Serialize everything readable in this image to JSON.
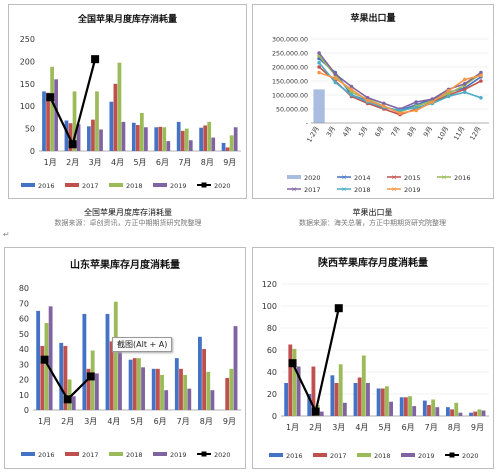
{
  "top_captions": [
    {
      "title": "全国苹果月度库存消耗量",
      "source": "数据来源：卓创资讯，方正中期期货研究院整理"
    },
    {
      "title": "苹果出口量",
      "source": "数据来源：海关总署，方正中期期货研究院整理"
    }
  ],
  "return_mark": "↵",
  "tooltip": "截图(Alt + A)",
  "chart_data": [
    {
      "type": "bar",
      "title": "全国苹果月度库存消耗量",
      "categories": [
        "1月",
        "2月",
        "3月",
        "4月",
        "5月",
        "6月",
        "7月",
        "8月",
        "9月"
      ],
      "ylim": [
        0,
        250
      ],
      "yticks": [
        "0",
        "50",
        "100",
        "150",
        "200",
        "250"
      ],
      "series": [
        {
          "name": "2016",
          "color": "#4472c4",
          "values": [
            133,
            68,
            55,
            110,
            63,
            53,
            65,
            52,
            18
          ]
        },
        {
          "name": "2017",
          "color": "#c0504d",
          "values": [
            130,
            62,
            70,
            150,
            58,
            54,
            45,
            57,
            8
          ]
        },
        {
          "name": "2018",
          "color": "#9bbb59",
          "values": [
            188,
            133,
            133,
            197,
            85,
            53,
            50,
            65,
            35
          ]
        },
        {
          "name": "2019",
          "color": "#8064a2",
          "values": [
            160,
            60,
            48,
            65,
            53,
            22,
            24,
            30,
            53
          ]
        }
      ],
      "line": {
        "name": "2020",
        "color": "#000000",
        "values": [
          120,
          15,
          205
        ]
      }
    },
    {
      "type": "line",
      "title": "苹果出口量",
      "categories": [
        "1-2月",
        "3月",
        "4月",
        "5月",
        "6月",
        "7月",
        "8月",
        "9月",
        "10月",
        "11月",
        "12月"
      ],
      "ylim": [
        0,
        300000
      ],
      "yticks": [
        "-",
        "50,000.00",
        "100,000.00",
        "150,000.00",
        "200,000.00",
        "250,000.00",
        "300,000.00"
      ],
      "bar": {
        "name": "2020",
        "color": "#a9bde1",
        "values": [
          120000,
          0,
          0,
          0,
          0,
          0,
          0,
          0,
          0,
          0,
          0
        ]
      },
      "series": [
        {
          "name": "2014",
          "color": "#4472c4",
          "values": [
            230000,
            180000,
            100000,
            80000,
            55000,
            45000,
            65000,
            85000,
            110000,
            125000,
            165000
          ]
        },
        {
          "name": "2015",
          "color": "#c0504d",
          "values": [
            200000,
            150000,
            95000,
            70000,
            50000,
            30000,
            50000,
            75000,
            100000,
            120000,
            150000
          ]
        },
        {
          "name": "2016",
          "color": "#9bbb59",
          "values": [
            240000,
            170000,
            110000,
            85000,
            60000,
            40000,
            60000,
            80000,
            105000,
            135000,
            175000
          ]
        },
        {
          "name": "2017",
          "color": "#8064a2",
          "values": [
            250000,
            175000,
            130000,
            90000,
            70000,
            50000,
            75000,
            85000,
            120000,
            140000,
            180000
          ]
        },
        {
          "name": "2018",
          "color": "#4bacc6",
          "values": [
            215000,
            145000,
            100000,
            75000,
            55000,
            45000,
            55000,
            70000,
            95000,
            110000,
            90000
          ]
        },
        {
          "name": "2019",
          "color": "#f79646",
          "values": [
            180000,
            160000,
            120000,
            80000,
            60000,
            35000,
            45000,
            75000,
            115000,
            155000,
            170000
          ]
        }
      ]
    },
    {
      "type": "bar",
      "title": "山东苹果库存月度消耗量",
      "categories": [
        "1月",
        "2月",
        "3月",
        "4月",
        "5月",
        "6月",
        "7月",
        "8月",
        "9月"
      ],
      "ylim": [
        0,
        80
      ],
      "yticks": [
        "0",
        "10",
        "20",
        "30",
        "40",
        "50",
        "60",
        "70",
        "80"
      ],
      "series": [
        {
          "name": "2016",
          "color": "#4472c4",
          "values": [
            65,
            44,
            63,
            63,
            33,
            27,
            34,
            48,
            0
          ]
        },
        {
          "name": "2017",
          "color": "#c0504d",
          "values": [
            42,
            42,
            27,
            45,
            34,
            27,
            27,
            40,
            21
          ]
        },
        {
          "name": "2018",
          "color": "#9bbb59",
          "values": [
            57,
            20,
            39,
            71,
            34,
            23,
            23,
            25,
            27
          ]
        },
        {
          "name": "2019",
          "color": "#8064a2",
          "values": [
            68,
            9,
            24,
            47,
            28,
            13,
            14,
            13,
            55
          ]
        }
      ],
      "line": {
        "name": "2020",
        "color": "#000000",
        "values": [
          33,
          7,
          22
        ]
      }
    },
    {
      "type": "bar",
      "title": "陕西苹果库存月度消耗量",
      "categories": [
        "1月",
        "2月",
        "3月",
        "4月",
        "5月",
        "6月",
        "7月",
        "8月",
        "9月"
      ],
      "ylim": [
        0,
        120
      ],
      "yticks": [
        "0",
        "20",
        "40",
        "60",
        "80",
        "100",
        "120"
      ],
      "series": [
        {
          "name": "2016",
          "color": "#4472c4",
          "values": [
            30,
            20,
            37,
            30,
            25,
            17,
            14,
            8,
            3
          ]
        },
        {
          "name": "2017",
          "color": "#c0504d",
          "values": [
            65,
            45,
            30,
            35,
            25,
            17,
            10,
            6,
            4
          ]
        },
        {
          "name": "2018",
          "color": "#9bbb59",
          "values": [
            61,
            10,
            47,
            55,
            27,
            18,
            15,
            12,
            6
          ]
        },
        {
          "name": "2019",
          "color": "#8064a2",
          "values": [
            45,
            4,
            12,
            30,
            13,
            9,
            8,
            3,
            5
          ]
        }
      ],
      "line": {
        "name": "2020",
        "color": "#000000",
        "values": [
          48,
          4,
          98
        ]
      }
    }
  ]
}
